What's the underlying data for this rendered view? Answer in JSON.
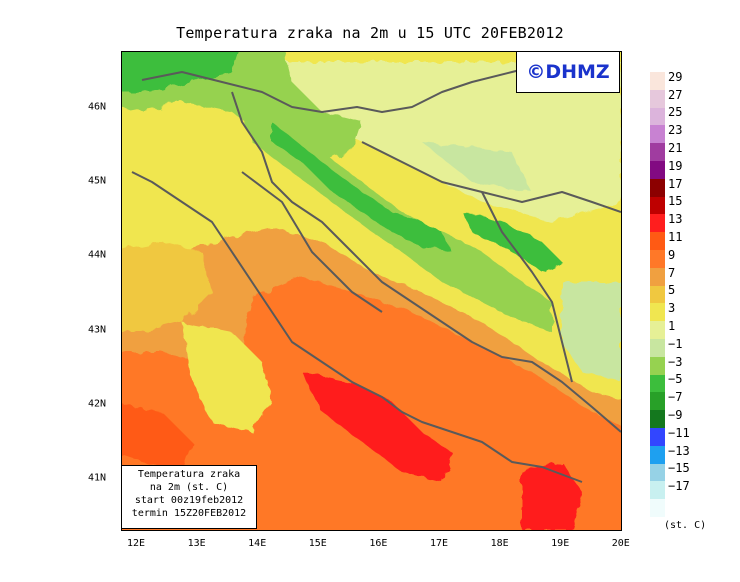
{
  "title": "Temperatura zraka na 2m u 15 UTC 20FEB2012",
  "logo": "©DHMZ",
  "info": {
    "line1": "Temperatura zraka",
    "line2": "na 2m (st. C)",
    "line3": "start 00z19feb2012",
    "line4": "termin 15Z20FEB2012"
  },
  "x_ticks": [
    "12E",
    "13E",
    "14E",
    "15E",
    "16E",
    "17E",
    "18E",
    "19E",
    "20E"
  ],
  "y_ticks": [
    "46N",
    "45N",
    "44N",
    "43N",
    "42N",
    "41N"
  ],
  "legend": {
    "labels": [
      "29",
      "27",
      "25",
      "23",
      "21",
      "19",
      "17",
      "15",
      "13",
      "11",
      "9",
      "7",
      "5",
      "3",
      "1",
      "−1",
      "−3",
      "−5",
      "−7",
      "−9",
      "−11",
      "−13",
      "−15",
      "−17"
    ],
    "colors": [
      "#fae6dc",
      "#e6c8dc",
      "#dcb4dc",
      "#c882d2",
      "#a03ca0",
      "#820a82",
      "#8c0000",
      "#be0000",
      "#ff1e1e",
      "#ff5a14",
      "#ff7828",
      "#f0a040",
      "#f0c840",
      "#f0e650",
      "#e6f096",
      "#c8e6a0",
      "#96d250",
      "#3cbe3c",
      "#28a028",
      "#14781e",
      "#3246ff",
      "#1ea0f0",
      "#96d2e6",
      "#c8f0f0",
      "#f0fcfc"
    ],
    "unit": "(st. C)"
  }
}
